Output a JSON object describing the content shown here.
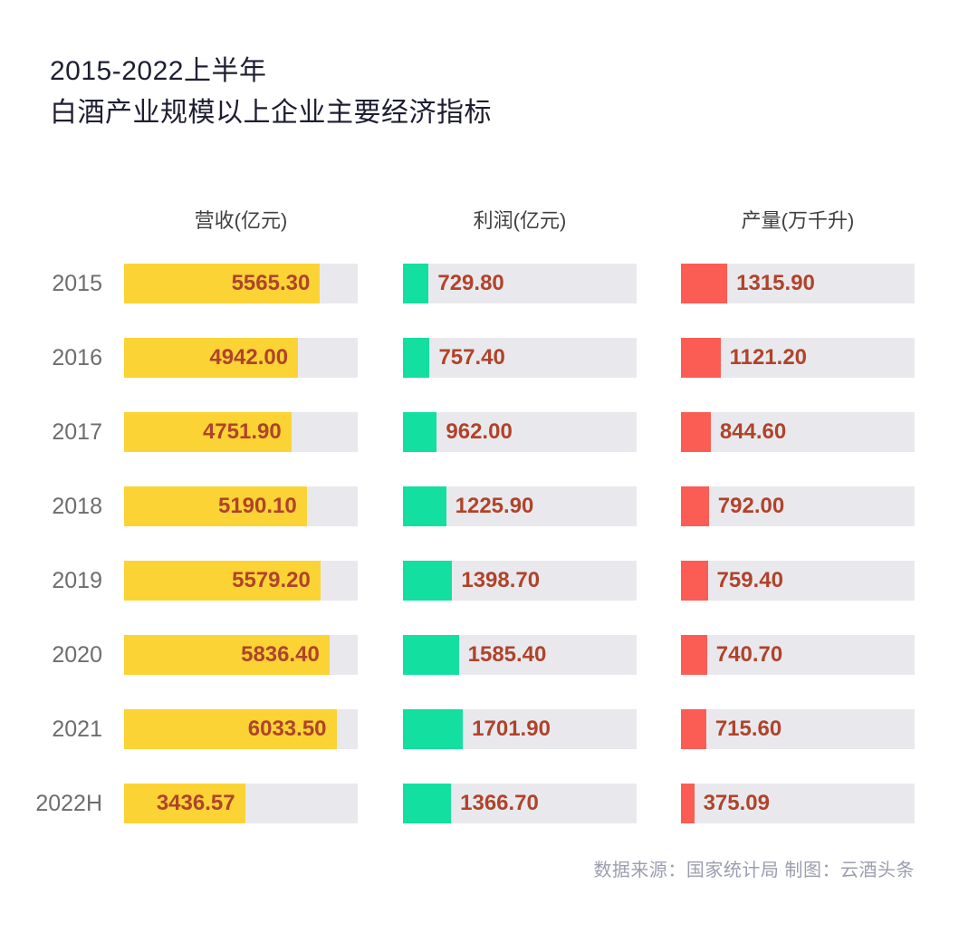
{
  "title": {
    "line1": "2015-2022上半年",
    "line2": "白酒产业规模以上企业主要经济指标"
  },
  "footer": {
    "text": "数据来源：国家统计局 制图：云酒头条"
  },
  "colors": {
    "revenue_bar": "#fbd335",
    "profit_bar": "#12dfa0",
    "output_bar": "#fb5c54",
    "track": "#e9e9ed",
    "value_text": "#b0432a",
    "title_text": "#1e1e32",
    "year_text": "#6d6d6d",
    "footer_text": "#9c9db0"
  },
  "chart_data": {
    "type": "bar",
    "orientation": "horizontal",
    "title": "2015-2022上半年 白酒产业规模以上企业主要经济指标",
    "categories": [
      "2015",
      "2016",
      "2017",
      "2018",
      "2019",
      "2020",
      "2021",
      "2022H"
    ],
    "columns": [
      {
        "key": "revenue",
        "label": "营收(亿元)",
        "color": "#fbd335",
        "value_position": "inside"
      },
      {
        "key": "profit",
        "label": "利润(亿元)",
        "color": "#12dfa0",
        "value_position": "outside"
      },
      {
        "key": "output",
        "label": "产量(万千升)",
        "color": "#fb5c54",
        "value_position": "outside"
      }
    ],
    "series": [
      {
        "name": "营收(亿元)",
        "values": [
          5565.3,
          4942.0,
          4751.9,
          5190.1,
          5579.2,
          5836.4,
          6033.5,
          3436.57
        ]
      },
      {
        "name": "利润(亿元)",
        "values": [
          729.8,
          757.4,
          962.0,
          1225.9,
          1398.7,
          1585.4,
          1701.9,
          1366.7
        ]
      },
      {
        "name": "产量(万千升)",
        "values": [
          1315.9,
          1121.2,
          844.6,
          792.0,
          759.4,
          740.7,
          715.6,
          375.09
        ]
      }
    ],
    "value_labels": [
      [
        "5565.30",
        "729.80",
        "1315.90"
      ],
      [
        "4942.00",
        "757.40",
        "1121.20"
      ],
      [
        "4751.90",
        "962.00",
        "844.60"
      ],
      [
        "5190.10",
        "1225.90",
        "792.00"
      ],
      [
        "5579.20",
        "1398.70",
        "759.40"
      ],
      [
        "5836.40",
        "1585.40",
        "740.70"
      ],
      [
        "6033.50",
        "1701.90",
        "715.60"
      ],
      [
        "3436.57",
        "1366.70",
        "375.09"
      ]
    ],
    "axis_max": 6637,
    "grid": false,
    "legend_position": "column-headers-top",
    "source_note": "数据来源：国家统计局 制图：云酒头条"
  }
}
